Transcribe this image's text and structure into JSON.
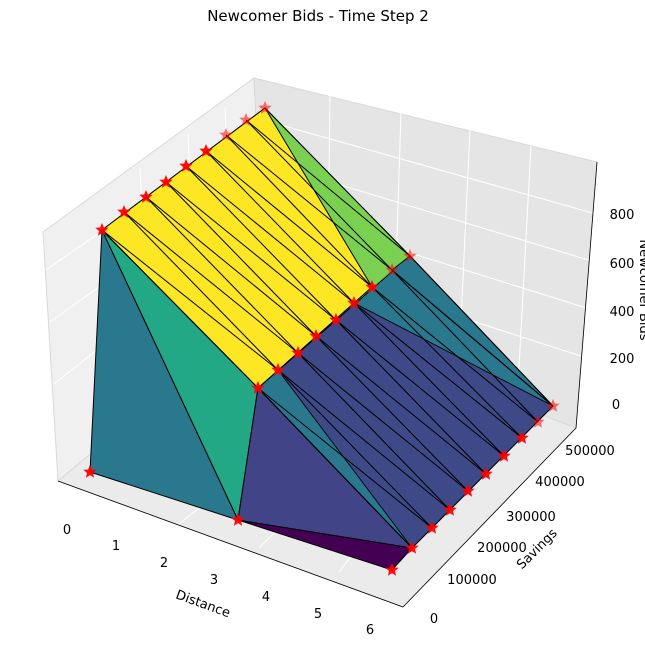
{
  "chart_data": {
    "type": "surface3d",
    "title": "Newcomer Bids - Time Step 2",
    "xlabel": "Distance",
    "ylabel": "Savings",
    "zlabel": "Newcomer Bids",
    "x_ticks": [
      "0",
      "1",
      "2",
      "3",
      "4",
      "5",
      "6"
    ],
    "y_ticks": [
      "0",
      "100000",
      "200000",
      "300000",
      "400000",
      "500000"
    ],
    "z_ticks": [
      "0",
      "200",
      "400",
      "600",
      "800"
    ],
    "xlim": [
      0,
      6
    ],
    "ylim": [
      0,
      500000
    ],
    "zlim": [
      0,
      1000
    ],
    "colormap": "viridis",
    "marker": "red-star",
    "points": [
      {
        "x": 0,
        "y": 0,
        "z": 0
      },
      {
        "x": 0,
        "y": 500000,
        "z": 1000
      },
      {
        "x": 3,
        "y": 0,
        "z": 0
      },
      {
        "x": 3,
        "y": 200000,
        "z": 400
      },
      {
        "x": 3,
        "y": 250000,
        "z": 1000
      },
      {
        "x": 6,
        "y": 0,
        "z": 0
      },
      {
        "x": 6,
        "y": 500000,
        "z": 0
      }
    ]
  },
  "colors": {
    "yellow": "#fde725",
    "light_green": "#7ad151",
    "green": "#22a884",
    "teal": "#2a788e",
    "indigo": "#414487",
    "purple": "#440154",
    "marker": "#ff0000"
  }
}
